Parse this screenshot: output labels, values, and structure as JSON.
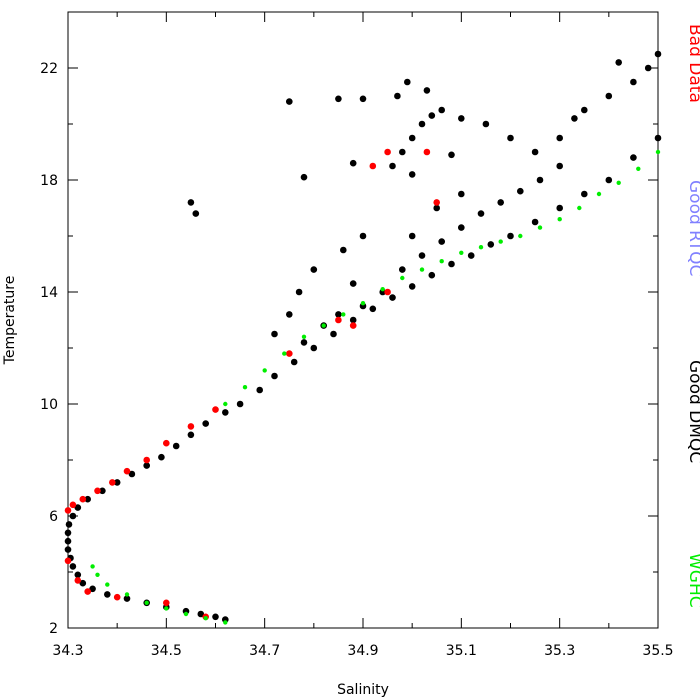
{
  "chart_data": {
    "type": "scatter",
    "title": "",
    "xlabel": "Salinity",
    "ylabel": "Temperature",
    "xlim": [
      34.3,
      35.5
    ],
    "ylim": [
      2,
      24
    ],
    "x_ticks": [
      34.3,
      34.5,
      34.7,
      34.9,
      35.1,
      35.3,
      35.5
    ],
    "x_tick_labels": [
      "34.3",
      "34.5",
      "34.7",
      "34.9",
      "35.1",
      "35.3",
      "35.5"
    ],
    "y_ticks": [
      2,
      6,
      10,
      14,
      18,
      22
    ],
    "y_tick_labels": [
      "2",
      "6",
      "10",
      "14",
      "18",
      "22"
    ],
    "grid": false,
    "legend_position": "right",
    "legend": [
      {
        "label": "Bad Data",
        "color": "#ff0000"
      },
      {
        "label": "Good RTQC",
        "color": "#8080ff"
      },
      {
        "label": "Good DMQC",
        "color": "#000000"
      },
      {
        "label": "WGHC",
        "color": "#00ee00"
      }
    ],
    "series": [
      {
        "name": "Good DMQC",
        "color": "#000000",
        "points": [
          [
            34.62,
            2.3
          ],
          [
            34.6,
            2.4
          ],
          [
            34.57,
            2.5
          ],
          [
            34.54,
            2.6
          ],
          [
            34.5,
            2.75
          ],
          [
            34.46,
            2.9
          ],
          [
            34.42,
            3.05
          ],
          [
            34.38,
            3.2
          ],
          [
            34.35,
            3.4
          ],
          [
            34.33,
            3.6
          ],
          [
            34.32,
            3.9
          ],
          [
            34.31,
            4.2
          ],
          [
            34.305,
            4.5
          ],
          [
            34.3,
            4.8
          ],
          [
            34.3,
            5.1
          ],
          [
            34.3,
            5.4
          ],
          [
            34.302,
            5.7
          ],
          [
            34.31,
            6.0
          ],
          [
            34.32,
            6.3
          ],
          [
            34.34,
            6.6
          ],
          [
            34.37,
            6.9
          ],
          [
            34.4,
            7.2
          ],
          [
            34.43,
            7.5
          ],
          [
            34.46,
            7.8
          ],
          [
            34.49,
            8.1
          ],
          [
            34.52,
            8.5
          ],
          [
            34.55,
            8.9
          ],
          [
            34.58,
            9.3
          ],
          [
            34.62,
            9.7
          ],
          [
            34.65,
            10.0
          ],
          [
            34.69,
            10.5
          ],
          [
            34.72,
            11.0
          ],
          [
            34.76,
            11.5
          ],
          [
            34.8,
            12.0
          ],
          [
            34.84,
            12.5
          ],
          [
            34.88,
            13.0
          ],
          [
            34.92,
            13.4
          ],
          [
            34.96,
            13.8
          ],
          [
            35.0,
            14.2
          ],
          [
            35.04,
            14.6
          ],
          [
            35.08,
            15.0
          ],
          [
            35.12,
            15.3
          ],
          [
            35.16,
            15.7
          ],
          [
            35.2,
            16.0
          ],
          [
            35.25,
            16.5
          ],
          [
            35.3,
            17.0
          ],
          [
            35.35,
            17.5
          ],
          [
            35.4,
            18.0
          ],
          [
            35.45,
            18.8
          ],
          [
            35.5,
            19.5
          ],
          [
            34.98,
            14.8
          ],
          [
            35.02,
            15.3
          ],
          [
            35.06,
            15.8
          ],
          [
            35.1,
            16.3
          ],
          [
            35.14,
            16.8
          ],
          [
            35.18,
            17.2
          ],
          [
            35.22,
            17.6
          ],
          [
            35.26,
            18.0
          ],
          [
            35.3,
            18.5
          ],
          [
            34.9,
            13.5
          ],
          [
            34.94,
            14.0
          ],
          [
            34.88,
            14.3
          ],
          [
            34.85,
            13.2
          ],
          [
            34.82,
            12.8
          ],
          [
            34.78,
            12.2
          ],
          [
            35.0,
            16.0
          ],
          [
            35.05,
            17.0
          ],
          [
            35.1,
            17.5
          ],
          [
            34.96,
            18.5
          ],
          [
            34.98,
            19.0
          ],
          [
            35.0,
            19.5
          ],
          [
            35.02,
            20.0
          ],
          [
            35.04,
            20.3
          ],
          [
            35.06,
            20.5
          ],
          [
            35.1,
            20.2
          ],
          [
            35.15,
            20.0
          ],
          [
            35.2,
            19.5
          ],
          [
            34.97,
            21.0
          ],
          [
            34.99,
            21.5
          ],
          [
            35.03,
            21.2
          ],
          [
            35.4,
            21.0
          ],
          [
            35.45,
            21.5
          ],
          [
            35.48,
            22.0
          ],
          [
            35.5,
            22.5
          ],
          [
            35.42,
            22.2
          ],
          [
            35.35,
            20.5
          ],
          [
            35.25,
            19.0
          ],
          [
            35.3,
            19.5
          ],
          [
            35.33,
            20.2
          ],
          [
            34.72,
            12.5
          ],
          [
            34.75,
            13.2
          ],
          [
            34.77,
            14.0
          ],
          [
            34.8,
            14.8
          ],
          [
            34.86,
            15.5
          ],
          [
            34.9,
            16.0
          ],
          [
            34.55,
            17.2
          ],
          [
            34.56,
            16.8
          ],
          [
            34.75,
            20.8
          ],
          [
            34.85,
            20.9
          ],
          [
            34.9,
            20.9
          ],
          [
            34.78,
            18.1
          ],
          [
            34.88,
            18.6
          ],
          [
            35.0,
            18.2
          ],
          [
            35.08,
            18.9
          ]
        ]
      },
      {
        "name": "Bad Data",
        "color": "#ff0000",
        "points": [
          [
            34.3,
            6.2
          ],
          [
            34.31,
            6.4
          ],
          [
            34.33,
            6.6
          ],
          [
            34.36,
            6.9
          ],
          [
            34.39,
            7.2
          ],
          [
            34.42,
            7.6
          ],
          [
            34.46,
            8.0
          ],
          [
            34.5,
            8.6
          ],
          [
            34.3,
            4.4
          ],
          [
            34.32,
            3.7
          ],
          [
            34.34,
            3.3
          ],
          [
            34.4,
            3.1
          ],
          [
            34.5,
            2.9
          ],
          [
            34.58,
            2.4
          ],
          [
            34.92,
            18.5
          ],
          [
            34.95,
            19.0
          ],
          [
            35.03,
            19.0
          ],
          [
            35.05,
            17.2
          ],
          [
            34.55,
            9.2
          ],
          [
            34.6,
            9.8
          ],
          [
            34.75,
            11.8
          ],
          [
            34.85,
            13.0
          ],
          [
            34.88,
            12.8
          ],
          [
            34.95,
            14.0
          ]
        ]
      },
      {
        "name": "WGHC",
        "color": "#00ee00",
        "points": [
          [
            34.62,
            2.2
          ],
          [
            34.58,
            2.35
          ],
          [
            34.54,
            2.5
          ],
          [
            34.5,
            2.7
          ],
          [
            34.46,
            2.9
          ],
          [
            34.42,
            3.2
          ],
          [
            34.38,
            3.55
          ],
          [
            34.36,
            3.9
          ],
          [
            34.35,
            4.2
          ],
          [
            34.62,
            10.0
          ],
          [
            34.66,
            10.6
          ],
          [
            34.7,
            11.2
          ],
          [
            34.74,
            11.8
          ],
          [
            34.78,
            12.4
          ],
          [
            34.82,
            12.8
          ],
          [
            34.86,
            13.2
          ],
          [
            34.9,
            13.6
          ],
          [
            34.94,
            14.1
          ],
          [
            34.98,
            14.5
          ],
          [
            35.02,
            14.8
          ],
          [
            35.06,
            15.1
          ],
          [
            35.1,
            15.4
          ],
          [
            35.14,
            15.6
          ],
          [
            35.18,
            15.8
          ],
          [
            35.22,
            16.0
          ],
          [
            35.26,
            16.3
          ],
          [
            35.3,
            16.6
          ],
          [
            35.34,
            17.0
          ],
          [
            35.38,
            17.5
          ],
          [
            35.42,
            17.9
          ],
          [
            35.46,
            18.4
          ],
          [
            35.5,
            19.0
          ]
        ]
      }
    ]
  }
}
